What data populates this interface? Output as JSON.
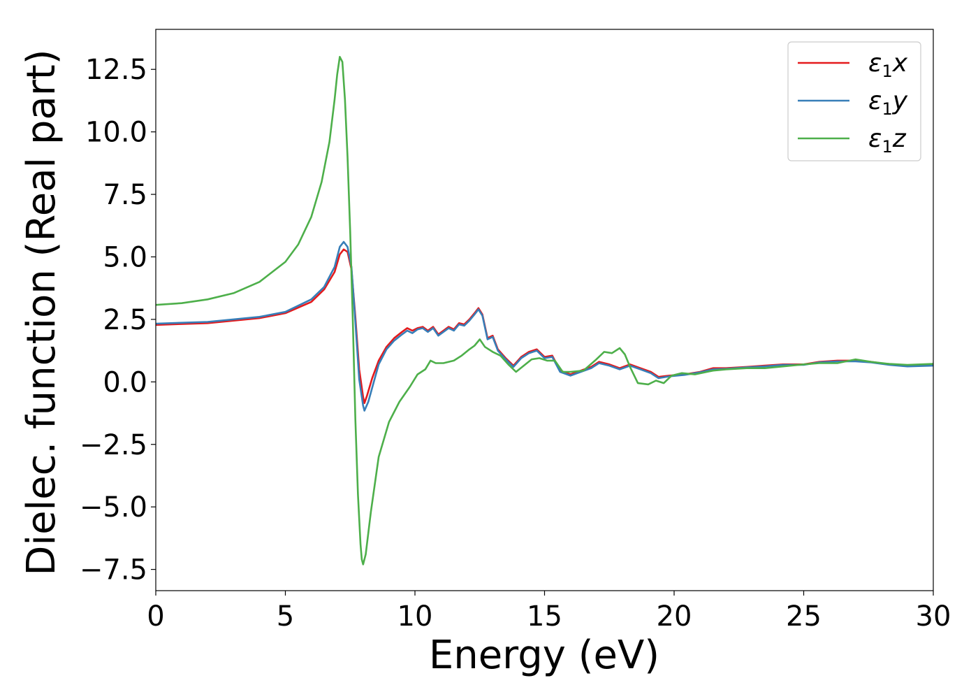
{
  "chart_data": {
    "type": "line",
    "xlabel": "Energy (eV)",
    "ylabel": "Dielec. function (Real part)",
    "xlim": [
      0,
      30
    ],
    "ylim": [
      -8.35,
      14.1
    ],
    "xticks": [
      0,
      5,
      10,
      15,
      20,
      25,
      30
    ],
    "xtick_labels": [
      "0",
      "5",
      "10",
      "15",
      "20",
      "25",
      "30"
    ],
    "yticks": [
      -7.5,
      -5.0,
      -2.5,
      0.0,
      2.5,
      5.0,
      7.5,
      10.0,
      12.5
    ],
    "ytick_labels": [
      "−7.5",
      "−5.0",
      "−2.5",
      "0.0",
      "2.5",
      "5.0",
      "7.5",
      "10.0",
      "12.5"
    ],
    "grid": false,
    "legend_position": "top-right",
    "series": [
      {
        "name": "ε1x",
        "legend": {
          "base": "ε",
          "sub": "1",
          "var": "x"
        },
        "color": "#e41a1c",
        "points": [
          [
            0,
            2.28
          ],
          [
            2,
            2.35
          ],
          [
            4,
            2.55
          ],
          [
            5,
            2.75
          ],
          [
            6,
            3.2
          ],
          [
            6.5,
            3.7
          ],
          [
            6.9,
            4.4
          ],
          [
            7.1,
            5.1
          ],
          [
            7.25,
            5.3
          ],
          [
            7.4,
            5.2
          ],
          [
            7.55,
            4.5
          ],
          [
            7.7,
            2.6
          ],
          [
            7.85,
            0.5
          ],
          [
            8.0,
            -0.6
          ],
          [
            8.05,
            -0.85
          ],
          [
            8.15,
            -0.55
          ],
          [
            8.35,
            0.15
          ],
          [
            8.6,
            0.85
          ],
          [
            8.9,
            1.4
          ],
          [
            9.2,
            1.75
          ],
          [
            9.5,
            2.0
          ],
          [
            9.7,
            2.15
          ],
          [
            9.9,
            2.05
          ],
          [
            10.1,
            2.15
          ],
          [
            10.3,
            2.2
          ],
          [
            10.5,
            2.05
          ],
          [
            10.7,
            2.2
          ],
          [
            10.9,
            1.9
          ],
          [
            11.1,
            2.05
          ],
          [
            11.3,
            2.2
          ],
          [
            11.5,
            2.1
          ],
          [
            11.7,
            2.35
          ],
          [
            11.9,
            2.3
          ],
          [
            12.1,
            2.5
          ],
          [
            12.3,
            2.75
          ],
          [
            12.45,
            2.95
          ],
          [
            12.6,
            2.7
          ],
          [
            12.8,
            1.75
          ],
          [
            13.0,
            1.85
          ],
          [
            13.2,
            1.3
          ],
          [
            13.5,
            0.95
          ],
          [
            13.8,
            0.65
          ],
          [
            14.1,
            1.0
          ],
          [
            14.4,
            1.2
          ],
          [
            14.7,
            1.3
          ],
          [
            15.0,
            1.0
          ],
          [
            15.3,
            1.05
          ],
          [
            15.6,
            0.45
          ],
          [
            16.0,
            0.3
          ],
          [
            16.4,
            0.45
          ],
          [
            16.8,
            0.6
          ],
          [
            17.1,
            0.8
          ],
          [
            17.5,
            0.7
          ],
          [
            17.9,
            0.55
          ],
          [
            18.3,
            0.7
          ],
          [
            18.7,
            0.55
          ],
          [
            19.1,
            0.4
          ],
          [
            19.4,
            0.2
          ],
          [
            19.8,
            0.25
          ],
          [
            20.4,
            0.3
          ],
          [
            21.0,
            0.4
          ],
          [
            21.5,
            0.55
          ],
          [
            22.0,
            0.55
          ],
          [
            22.8,
            0.6
          ],
          [
            23.5,
            0.65
          ],
          [
            24.2,
            0.7
          ],
          [
            25.0,
            0.7
          ],
          [
            25.6,
            0.8
          ],
          [
            26.3,
            0.85
          ],
          [
            27.0,
            0.85
          ],
          [
            27.6,
            0.8
          ],
          [
            28.3,
            0.7
          ],
          [
            29.0,
            0.65
          ],
          [
            30.0,
            0.68
          ]
        ]
      },
      {
        "name": "ε1y",
        "legend": {
          "base": "ε",
          "sub": "1",
          "var": "y"
        },
        "color": "#377eb8",
        "points": [
          [
            0,
            2.33
          ],
          [
            2,
            2.4
          ],
          [
            4,
            2.6
          ],
          [
            5,
            2.8
          ],
          [
            6,
            3.3
          ],
          [
            6.5,
            3.8
          ],
          [
            6.9,
            4.6
          ],
          [
            7.1,
            5.4
          ],
          [
            7.25,
            5.6
          ],
          [
            7.4,
            5.4
          ],
          [
            7.55,
            4.6
          ],
          [
            7.7,
            2.4
          ],
          [
            7.85,
            0.1
          ],
          [
            8.0,
            -0.95
          ],
          [
            8.05,
            -1.15
          ],
          [
            8.2,
            -0.8
          ],
          [
            8.4,
            -0.05
          ],
          [
            8.6,
            0.7
          ],
          [
            8.9,
            1.3
          ],
          [
            9.2,
            1.65
          ],
          [
            9.5,
            1.9
          ],
          [
            9.7,
            2.05
          ],
          [
            9.9,
            1.95
          ],
          [
            10.1,
            2.1
          ],
          [
            10.3,
            2.15
          ],
          [
            10.5,
            2.0
          ],
          [
            10.7,
            2.15
          ],
          [
            10.9,
            1.85
          ],
          [
            11.1,
            2.0
          ],
          [
            11.3,
            2.15
          ],
          [
            11.5,
            2.05
          ],
          [
            11.7,
            2.3
          ],
          [
            11.9,
            2.25
          ],
          [
            12.1,
            2.45
          ],
          [
            12.3,
            2.7
          ],
          [
            12.45,
            2.9
          ],
          [
            12.6,
            2.65
          ],
          [
            12.8,
            1.7
          ],
          [
            13.0,
            1.8
          ],
          [
            13.2,
            1.25
          ],
          [
            13.5,
            0.9
          ],
          [
            13.8,
            0.6
          ],
          [
            14.1,
            0.95
          ],
          [
            14.4,
            1.15
          ],
          [
            14.7,
            1.25
          ],
          [
            15.0,
            0.95
          ],
          [
            15.3,
            1.0
          ],
          [
            15.6,
            0.4
          ],
          [
            16.0,
            0.25
          ],
          [
            16.4,
            0.4
          ],
          [
            16.8,
            0.55
          ],
          [
            17.1,
            0.75
          ],
          [
            17.5,
            0.65
          ],
          [
            17.9,
            0.5
          ],
          [
            18.3,
            0.65
          ],
          [
            18.7,
            0.5
          ],
          [
            19.1,
            0.35
          ],
          [
            19.4,
            0.15
          ],
          [
            19.8,
            0.22
          ],
          [
            20.4,
            0.28
          ],
          [
            21.0,
            0.38
          ],
          [
            21.5,
            0.5
          ],
          [
            22.0,
            0.52
          ],
          [
            22.8,
            0.58
          ],
          [
            23.5,
            0.62
          ],
          [
            24.2,
            0.68
          ],
          [
            25.0,
            0.68
          ],
          [
            25.6,
            0.78
          ],
          [
            26.3,
            0.82
          ],
          [
            27.0,
            0.82
          ],
          [
            27.6,
            0.78
          ],
          [
            28.3,
            0.68
          ],
          [
            29.0,
            0.62
          ],
          [
            30.0,
            0.65
          ]
        ]
      },
      {
        "name": "ε1z",
        "legend": {
          "base": "ε",
          "sub": "1",
          "var": "z"
        },
        "color": "#4daf4a",
        "points": [
          [
            0,
            3.08
          ],
          [
            1,
            3.15
          ],
          [
            2,
            3.3
          ],
          [
            3,
            3.55
          ],
          [
            4,
            4.0
          ],
          [
            5,
            4.8
          ],
          [
            5.5,
            5.5
          ],
          [
            6.0,
            6.6
          ],
          [
            6.4,
            8.0
          ],
          [
            6.7,
            9.6
          ],
          [
            6.9,
            11.3
          ],
          [
            7.0,
            12.3
          ],
          [
            7.1,
            13.0
          ],
          [
            7.2,
            12.8
          ],
          [
            7.3,
            11.3
          ],
          [
            7.4,
            9.0
          ],
          [
            7.5,
            6.0
          ],
          [
            7.6,
            2.5
          ],
          [
            7.7,
            -1.5
          ],
          [
            7.8,
            -4.5
          ],
          [
            7.9,
            -6.5
          ],
          [
            7.95,
            -7.1
          ],
          [
            8.0,
            -7.3
          ],
          [
            8.1,
            -6.9
          ],
          [
            8.3,
            -5.2
          ],
          [
            8.6,
            -3.0
          ],
          [
            9.0,
            -1.6
          ],
          [
            9.4,
            -0.8
          ],
          [
            9.8,
            -0.2
          ],
          [
            10.1,
            0.3
          ],
          [
            10.4,
            0.5
          ],
          [
            10.6,
            0.85
          ],
          [
            10.8,
            0.75
          ],
          [
            11.1,
            0.75
          ],
          [
            11.5,
            0.85
          ],
          [
            11.8,
            1.05
          ],
          [
            12.1,
            1.3
          ],
          [
            12.3,
            1.45
          ],
          [
            12.5,
            1.7
          ],
          [
            12.7,
            1.4
          ],
          [
            13.0,
            1.2
          ],
          [
            13.3,
            1.05
          ],
          [
            13.6,
            0.7
          ],
          [
            13.9,
            0.4
          ],
          [
            14.2,
            0.65
          ],
          [
            14.5,
            0.9
          ],
          [
            14.8,
            0.95
          ],
          [
            15.1,
            0.85
          ],
          [
            15.4,
            0.85
          ],
          [
            15.7,
            0.4
          ],
          [
            16.0,
            0.4
          ],
          [
            16.5,
            0.45
          ],
          [
            17.0,
            0.9
          ],
          [
            17.3,
            1.2
          ],
          [
            17.6,
            1.15
          ],
          [
            17.9,
            1.35
          ],
          [
            18.1,
            1.1
          ],
          [
            18.3,
            0.6
          ],
          [
            18.6,
            -0.05
          ],
          [
            19.0,
            -0.1
          ],
          [
            19.3,
            0.05
          ],
          [
            19.6,
            -0.05
          ],
          [
            19.9,
            0.25
          ],
          [
            20.3,
            0.35
          ],
          [
            20.8,
            0.3
          ],
          [
            21.5,
            0.45
          ],
          [
            22.0,
            0.5
          ],
          [
            22.8,
            0.55
          ],
          [
            23.5,
            0.55
          ],
          [
            24.2,
            0.62
          ],
          [
            25.0,
            0.7
          ],
          [
            25.6,
            0.75
          ],
          [
            26.3,
            0.75
          ],
          [
            27.0,
            0.9
          ],
          [
            27.6,
            0.8
          ],
          [
            28.3,
            0.72
          ],
          [
            29.0,
            0.68
          ],
          [
            30.0,
            0.72
          ]
        ]
      }
    ]
  }
}
